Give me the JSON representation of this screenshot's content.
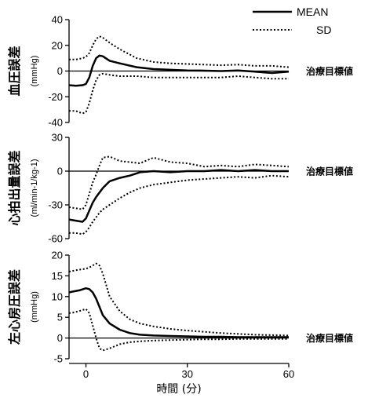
{
  "chart_data": [
    {
      "type": "line",
      "ylabel": "血圧誤差",
      "yunit": "(mmHg)",
      "ylim": [
        -40,
        40
      ],
      "yticks": [
        40,
        20,
        0,
        -20,
        -40
      ],
      "target_label": "治療目標値",
      "series": [
        {
          "name": "MEAN",
          "style": "solid",
          "x": [
            -5,
            -3,
            -1,
            0,
            1,
            2,
            3,
            4,
            5,
            7,
            10,
            15,
            20,
            25,
            30,
            35,
            40,
            45,
            50,
            55,
            60
          ],
          "y": [
            -11,
            -11.5,
            -11,
            -10,
            -5,
            4,
            10,
            12,
            11.5,
            8,
            6,
            3,
            1.5,
            1,
            0.5,
            0.3,
            0,
            0.5,
            -0.5,
            -1.5,
            -0.5
          ]
        },
        {
          "name": "SD",
          "style": "dotted",
          "x": [
            -5,
            -3,
            -1,
            0,
            1,
            2,
            3,
            4,
            5,
            7,
            10,
            15,
            20,
            25,
            30,
            35,
            40,
            45,
            50,
            55,
            60
          ],
          "y": [
            9,
            9,
            10,
            11,
            14,
            20,
            25,
            27,
            26,
            22,
            17,
            10,
            7,
            6,
            5.5,
            5,
            4.5,
            5,
            4,
            4,
            3
          ]
        },
        {
          "name": "",
          "style": "dotted",
          "x": [
            -5,
            -3,
            -1,
            0,
            1,
            2,
            3,
            4,
            5,
            7,
            10,
            15,
            20,
            25,
            30,
            35,
            40,
            45,
            50,
            55,
            60
          ],
          "y": [
            -31,
            -31,
            -33,
            -32,
            -25,
            -15,
            -7,
            -3,
            -2,
            -3,
            -4,
            -4,
            -5,
            -5,
            -5,
            -5,
            -5,
            -4,
            -5,
            -6,
            -6
          ]
        }
      ]
    },
    {
      "type": "line",
      "ylabel": "心拍出量誤差",
      "yunit": "(ml/min-1/kg-1)",
      "ylim": [
        -60,
        30
      ],
      "yticks": [
        30,
        0,
        -30,
        -60
      ],
      "target_label": "治療目標値",
      "series": [
        {
          "name": "MEAN",
          "style": "solid",
          "x": [
            -5,
            -3,
            -1,
            0,
            1,
            2,
            3,
            4,
            5,
            7,
            10,
            13,
            16,
            20,
            25,
            30,
            35,
            40,
            45,
            50,
            55,
            60
          ],
          "y": [
            -43,
            -44,
            -45,
            -42,
            -35,
            -28,
            -23,
            -19,
            -15,
            -9,
            -6,
            -4,
            -1,
            0,
            -1,
            0,
            0,
            1,
            0,
            1,
            0,
            0
          ]
        },
        {
          "name": "SD",
          "style": "dotted",
          "x": [
            -5,
            -3,
            -1,
            0,
            1,
            2,
            3,
            4,
            5,
            7,
            10,
            13,
            16,
            20,
            25,
            30,
            35,
            40,
            45,
            50,
            55,
            60
          ],
          "y": [
            -32,
            -33,
            -34,
            -30,
            -20,
            -10,
            -3,
            5,
            12,
            13,
            9,
            8,
            7,
            12,
            8,
            7,
            4,
            5,
            4,
            6,
            5,
            4
          ]
        },
        {
          "name": "",
          "style": "dotted",
          "x": [
            -5,
            -3,
            -1,
            0,
            1,
            2,
            3,
            4,
            5,
            7,
            10,
            13,
            16,
            20,
            25,
            30,
            35,
            40,
            45,
            50,
            55,
            60
          ],
          "y": [
            -55,
            -55,
            -56,
            -54,
            -50,
            -45,
            -41,
            -37,
            -34,
            -30,
            -24,
            -19,
            -15,
            -12,
            -10,
            -8,
            -7,
            -6,
            -5,
            -6,
            -4,
            -5
          ]
        }
      ]
    },
    {
      "type": "line",
      "ylabel": "左心房圧誤差",
      "yunit": "(mmHg)",
      "ylim": [
        -5,
        20
      ],
      "yticks": [
        20,
        15,
        10,
        5,
        0,
        -5
      ],
      "target_label": "治療目標値",
      "xlim": [
        -5,
        60
      ],
      "xticks": [
        0,
        30,
        60
      ],
      "xlabel": "時間 (分)",
      "series": [
        {
          "name": "MEAN",
          "style": "solid",
          "x": [
            -5,
            -4,
            -2,
            0,
            1,
            2,
            3,
            4,
            5,
            7,
            10,
            13,
            16,
            20,
            25,
            30,
            35,
            40,
            45,
            50,
            55,
            60
          ],
          "y": [
            11,
            11.2,
            11.5,
            12,
            11.8,
            11,
            9.5,
            7.5,
            5.5,
            3.5,
            2,
            1.2,
            0.8,
            0.6,
            0.5,
            0.4,
            0.3,
            0.3,
            0.2,
            0.2,
            0.2,
            0.2
          ]
        },
        {
          "name": "SD",
          "style": "dotted",
          "x": [
            -5,
            -4,
            -2,
            0,
            1,
            2,
            3,
            4,
            5,
            7,
            10,
            13,
            16,
            20,
            25,
            30,
            35,
            40,
            45,
            50,
            55,
            60
          ],
          "y": [
            16,
            16.2,
            16.5,
            16.7,
            17,
            17.5,
            18,
            17.5,
            15.5,
            10,
            6.5,
            4.5,
            3.5,
            2.8,
            2.2,
            1.8,
            1.5,
            1.2,
            1,
            0.8,
            0.7,
            0.6
          ]
        },
        {
          "name": "",
          "style": "dotted",
          "x": [
            -5,
            -4,
            -2,
            0,
            1,
            2,
            3,
            4,
            5,
            7,
            10,
            13,
            16,
            20,
            25,
            30,
            35,
            40,
            45,
            50,
            55,
            60
          ],
          "y": [
            6,
            6.1,
            6.5,
            7,
            6,
            3,
            0,
            -2.5,
            -3,
            -2.5,
            -1.5,
            -1,
            -0.8,
            -0.6,
            -0.5,
            -0.4,
            -0.3,
            -0.3,
            -0.2,
            -0.2,
            -0.2,
            -0.2
          ]
        }
      ]
    }
  ],
  "legend": {
    "mean_label": "MEAN",
    "sd_label": "SD"
  }
}
